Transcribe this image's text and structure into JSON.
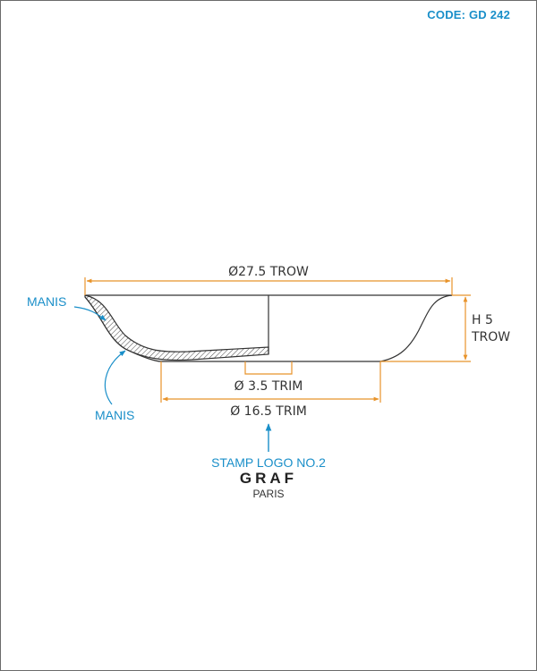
{
  "code": "CODE: GD 242",
  "dimensions": {
    "outer_diameter": "Ø27.5 TROW",
    "height_line1": "H 5",
    "height_line2": "TROW",
    "inner_trim": "Ø 3.5 TRIM",
    "foot_trim": "Ø 16.5 TRIM"
  },
  "annotations": {
    "manis_top": "MANIS",
    "manis_bottom": "MANIS",
    "stamp": "STAMP LOGO NO.2"
  },
  "stamp_logo": {
    "brand": "GRAF",
    "city": "PARIS"
  },
  "colors": {
    "accent": "#1a8fc9",
    "dimension": "#e8932a",
    "outline": "#333333"
  },
  "icons": {
    "arrow": "arrow-up-icon",
    "curved_arrow": "curved-arrow-icon"
  }
}
